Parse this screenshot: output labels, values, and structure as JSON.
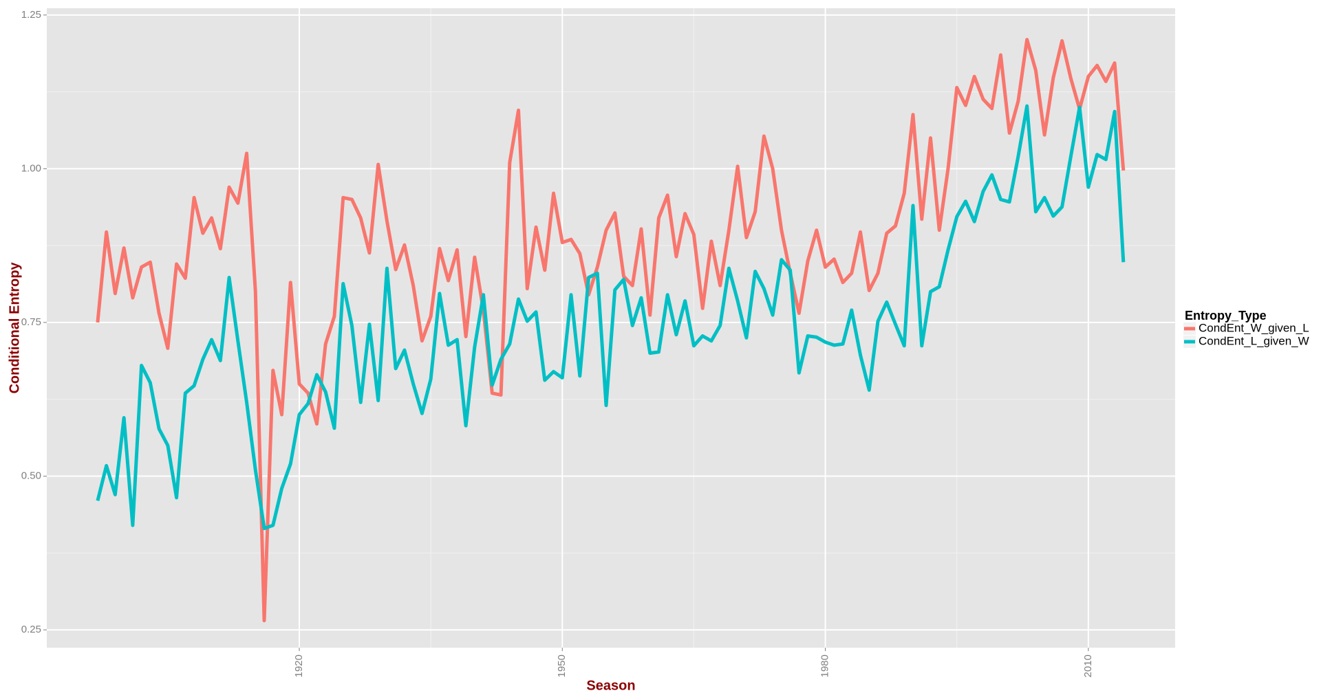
{
  "chart_data": {
    "type": "line",
    "x_label": "Season",
    "y_label": "Conditional Entropy",
    "legend_title": "Entropy_Type",
    "legend_position": "right",
    "grid": true,
    "x": [
      1897,
      1898,
      1899,
      1900,
      1901,
      1902,
      1903,
      1904,
      1905,
      1906,
      1907,
      1908,
      1909,
      1910,
      1911,
      1912,
      1913,
      1914,
      1915,
      1916,
      1917,
      1918,
      1919,
      1920,
      1921,
      1922,
      1923,
      1924,
      1925,
      1926,
      1927,
      1928,
      1929,
      1930,
      1931,
      1932,
      1933,
      1934,
      1935,
      1936,
      1937,
      1938,
      1939,
      1940,
      1941,
      1942,
      1943,
      1944,
      1945,
      1946,
      1947,
      1948,
      1949,
      1950,
      1951,
      1952,
      1953,
      1954,
      1955,
      1956,
      1957,
      1958,
      1959,
      1960,
      1961,
      1962,
      1963,
      1964,
      1965,
      1966,
      1967,
      1968,
      1969,
      1970,
      1971,
      1972,
      1973,
      1974,
      1975,
      1976,
      1977,
      1978,
      1979,
      1980,
      1981,
      1982,
      1983,
      1984,
      1985,
      1986,
      1987,
      1988,
      1989,
      1990,
      1991,
      1992,
      1993,
      1994,
      1995,
      1996,
      1997,
      1998,
      1999,
      2000,
      2001,
      2002,
      2003,
      2004,
      2005,
      2006,
      2007,
      2008,
      2009,
      2010,
      2011,
      2012,
      2013,
      2014
    ],
    "series": [
      {
        "name": "CondEnt_W_given_L",
        "color": "#F8766D",
        "values": [
          0.75,
          0.897,
          0.797,
          0.871,
          0.79,
          0.84,
          0.848,
          0.765,
          0.708,
          0.845,
          0.822,
          0.953,
          0.895,
          0.92,
          0.87,
          0.97,
          0.944,
          1.025,
          0.8,
          0.265,
          0.672,
          0.6,
          0.815,
          0.65,
          0.635,
          0.585,
          0.715,
          0.76,
          0.953,
          0.95,
          0.92,
          0.863,
          1.007,
          0.915,
          0.836,
          0.876,
          0.81,
          0.72,
          0.76,
          0.87,
          0.818,
          0.868,
          0.727,
          0.856,
          0.77,
          0.635,
          0.632,
          1.01,
          1.095,
          0.805,
          0.905,
          0.835,
          0.96,
          0.88,
          0.885,
          0.862,
          0.795,
          0.84,
          0.9,
          0.928,
          0.825,
          0.81,
          0.902,
          0.762,
          0.92,
          0.957,
          0.857,
          0.927,
          0.893,
          0.773,
          0.882,
          0.81,
          0.9,
          1.004,
          0.888,
          0.93,
          1.053,
          1.0,
          0.9,
          0.83,
          0.765,
          0.85,
          0.9,
          0.84,
          0.853,
          0.815,
          0.83,
          0.897,
          0.802,
          0.83,
          0.895,
          0.907,
          0.96,
          1.088,
          0.918,
          1.05,
          0.9,
          1.0,
          1.132,
          1.103,
          1.15,
          1.113,
          1.098,
          1.185,
          1.058,
          1.11,
          1.21,
          1.16,
          1.055,
          1.148,
          1.208,
          1.147,
          1.097,
          1.15,
          1.168,
          1.142,
          1.172,
          0.997
        ]
      },
      {
        "name": "CondEnt_L_given_W",
        "color": "#00BFC4",
        "values": [
          0.46,
          0.517,
          0.47,
          0.595,
          0.42,
          0.68,
          0.652,
          0.577,
          0.55,
          0.465,
          0.635,
          0.647,
          0.69,
          0.722,
          0.688,
          0.823,
          0.72,
          0.62,
          0.51,
          0.415,
          0.42,
          0.48,
          0.52,
          0.6,
          0.618,
          0.665,
          0.637,
          0.578,
          0.813,
          0.745,
          0.62,
          0.747,
          0.623,
          0.838,
          0.675,
          0.705,
          0.65,
          0.602,
          0.658,
          0.797,
          0.713,
          0.722,
          0.582,
          0.71,
          0.795,
          0.648,
          0.69,
          0.715,
          0.788,
          0.752,
          0.767,
          0.656,
          0.67,
          0.66,
          0.795,
          0.663,
          0.823,
          0.83,
          0.615,
          0.803,
          0.82,
          0.745,
          0.79,
          0.7,
          0.702,
          0.795,
          0.73,
          0.785,
          0.712,
          0.728,
          0.72,
          0.745,
          0.838,
          0.785,
          0.725,
          0.833,
          0.805,
          0.762,
          0.852,
          0.835,
          0.668,
          0.728,
          0.726,
          0.718,
          0.713,
          0.715,
          0.77,
          0.697,
          0.64,
          0.752,
          0.783,
          0.747,
          0.712,
          0.94,
          0.712,
          0.8,
          0.808,
          0.868,
          0.922,
          0.947,
          0.914,
          0.963,
          0.99,
          0.95,
          0.946,
          1.02,
          1.102,
          0.93,
          0.953,
          0.923,
          0.938,
          1.02,
          1.1,
          0.97,
          1.023,
          1.015,
          1.093,
          0.848
        ]
      }
    ],
    "xlim": [
      1891.2,
      2019.9
    ],
    "xticks": [
      1920,
      1950,
      1980,
      2010
    ],
    "ylim": [
      0.221,
      1.261
    ],
    "yticks": [
      {
        "value": 0.25,
        "label": "0.25"
      },
      {
        "value": 0.5,
        "label": "0.50"
      },
      {
        "value": 0.75,
        "label": "0.75"
      },
      {
        "value": 1.0,
        "label": "1.00"
      },
      {
        "value": 1.25,
        "label": "1.25"
      }
    ]
  }
}
